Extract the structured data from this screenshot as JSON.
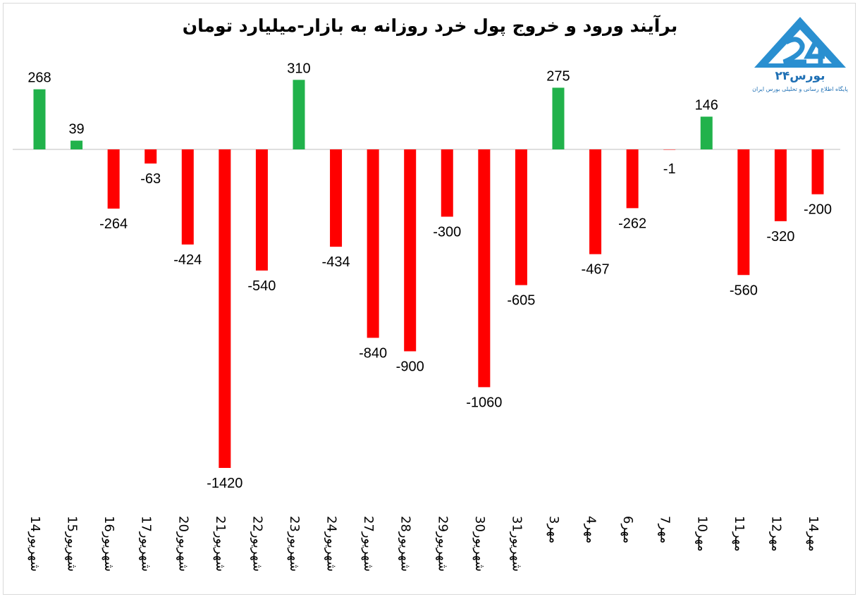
{
  "title": "برآیند ورود و خروج پول خرد روزانه به بازار-میلیارد تومان",
  "logo": {
    "name": "بورس۲۴",
    "subtitle": "پایگاه اطلاع رسانی و تحلیلی بورس ایران"
  },
  "colors": {
    "positive": "#21b24b",
    "negative": "#ff0000",
    "axis": "#bfbfbf"
  },
  "chart_data": {
    "type": "bar",
    "title": "برآیند ورود و خروج پول خرد روزانه به بازار-میلیارد تومان",
    "categories": [
      "14شهریور",
      "15شهریور",
      "16شهریور",
      "17شهریور",
      "20شهریور",
      "21شهریور",
      "22شهریور",
      "23شهریور",
      "24شهریور",
      "27شهریور",
      "28شهریور",
      "29شهریور",
      "30شهریور",
      "31شهریور",
      "3مهر",
      "4مهر",
      "6مهر",
      "7مهر",
      "10مهر",
      "11مهر",
      "12مهر",
      "14مهر"
    ],
    "values": [
      268,
      39,
      -264,
      -63,
      -424,
      -1420,
      -540,
      310,
      -434,
      -840,
      -900,
      -300,
      -1060,
      -605,
      275,
      -467,
      -262,
      -1,
      146,
      -560,
      -320,
      -200
    ],
    "value_labels": [
      "268",
      "39",
      "-264",
      "-63",
      "-424",
      "-1420",
      "-540",
      "310",
      "-434",
      "-840",
      "-900",
      "-300",
      "-1060",
      "-605",
      "275",
      "-467",
      "-262",
      "-1",
      "146",
      "-560",
      "-320",
      "-200"
    ],
    "xlabel": "",
    "ylabel": "",
    "ylim": [
      -1420,
      310
    ],
    "grid": false,
    "legend": "none"
  }
}
